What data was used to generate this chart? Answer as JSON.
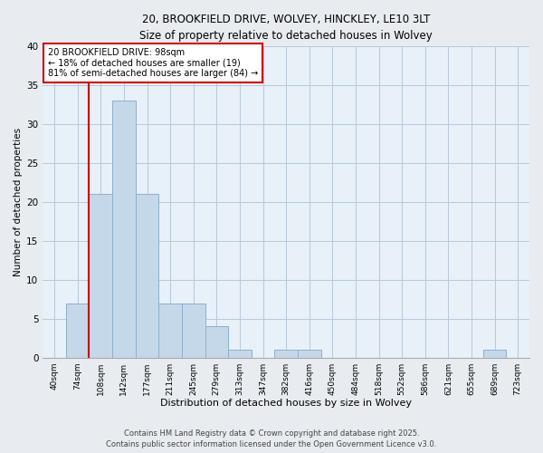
{
  "title_line1": "20, BROOKFIELD DRIVE, WOLVEY, HINCKLEY, LE10 3LT",
  "title_line2": "Size of property relative to detached houses in Wolvey",
  "xlabel": "Distribution of detached houses by size in Wolvey",
  "ylabel": "Number of detached properties",
  "bins": [
    "40sqm",
    "74sqm",
    "108sqm",
    "142sqm",
    "177sqm",
    "211sqm",
    "245sqm",
    "279sqm",
    "313sqm",
    "347sqm",
    "382sqm",
    "416sqm",
    "450sqm",
    "484sqm",
    "518sqm",
    "552sqm",
    "586sqm",
    "621sqm",
    "655sqm",
    "689sqm",
    "723sqm"
  ],
  "values": [
    0,
    7,
    21,
    33,
    21,
    7,
    7,
    4,
    1,
    0,
    1,
    1,
    0,
    0,
    0,
    0,
    0,
    0,
    0,
    1,
    0
  ],
  "bar_color": "#c5d8ea",
  "bar_edge_color": "#8ab0cc",
  "vline_color": "#cc0000",
  "vline_bin_index": 2,
  "annotation_text": "20 BROOKFIELD DRIVE: 98sqm\n← 18% of detached houses are smaller (19)\n81% of semi-detached houses are larger (84) →",
  "annotation_box_color": "white",
  "annotation_box_edge_color": "#cc0000",
  "ylim": [
    0,
    40
  ],
  "yticks": [
    0,
    5,
    10,
    15,
    20,
    25,
    30,
    35,
    40
  ],
  "footer_line1": "Contains HM Land Registry data © Crown copyright and database right 2025.",
  "footer_line2": "Contains public sector information licensed under the Open Government Licence v3.0.",
  "background_color": "#e8ecf0",
  "plot_background_color": "#e8f0f8",
  "grid_color": "#b8c8d8"
}
